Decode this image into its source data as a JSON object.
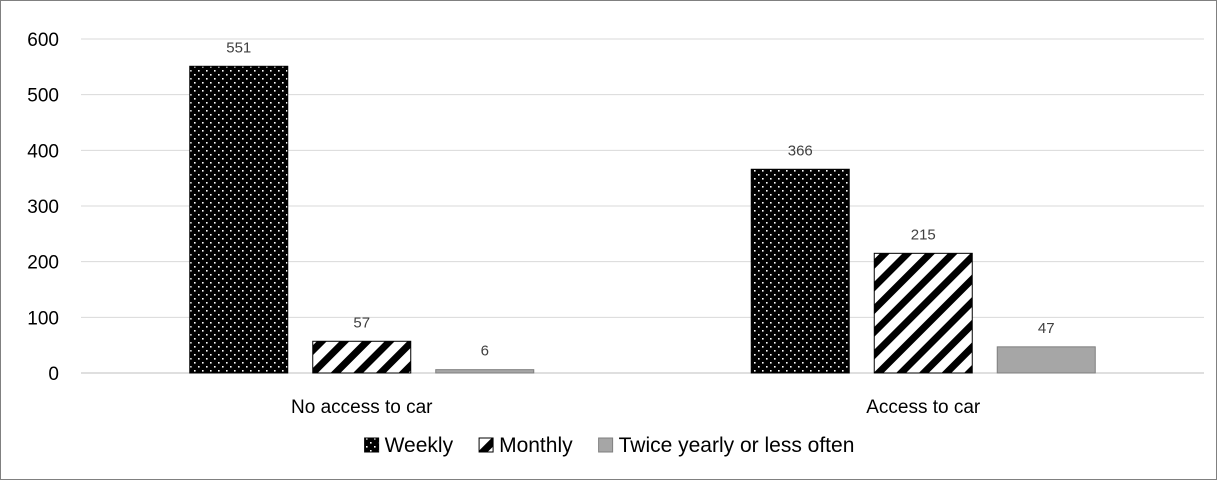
{
  "chart_data": {
    "type": "bar",
    "title": "",
    "xlabel": "",
    "ylabel": "",
    "categories": [
      "No access to car",
      "Access to car"
    ],
    "series": [
      {
        "name": "Weekly",
        "values": [
          551,
          366
        ],
        "pattern": "dots",
        "color": "#000000"
      },
      {
        "name": "Monthly",
        "values": [
          57,
          215
        ],
        "pattern": "diagonal-stripes",
        "color": "#000000"
      },
      {
        "name": "Twice yearly or less often",
        "values": [
          6,
          47
        ],
        "pattern": "solid",
        "color": "#a6a6a6"
      }
    ],
    "ylim": [
      0,
      600
    ],
    "yticks": [
      0,
      100,
      200,
      300,
      400,
      500,
      600
    ],
    "grid": true,
    "legend_position": "bottom",
    "data_labels": true
  }
}
